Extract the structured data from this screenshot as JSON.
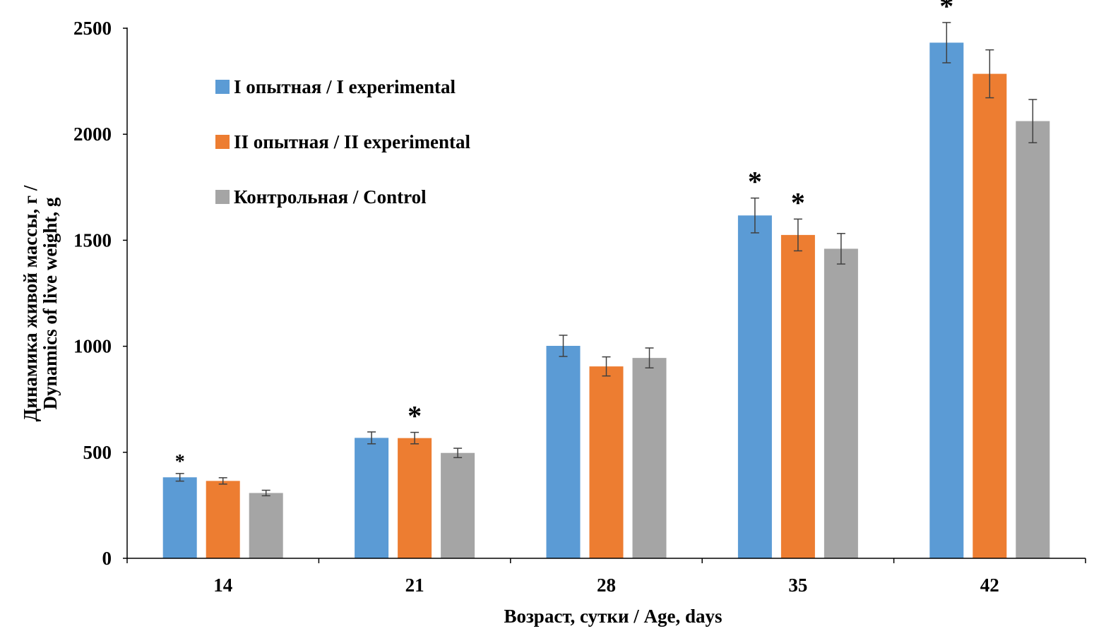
{
  "chart_data": {
    "type": "bar",
    "categories": [
      "14",
      "21",
      "28",
      "35",
      "42"
    ],
    "series": [
      {
        "name": "I опытная / I experimental",
        "color": "#5b9bd5",
        "values": [
          382,
          568,
          1002,
          1617,
          2432
        ],
        "errors": [
          18,
          28,
          50,
          82,
          95
        ],
        "markers": [
          "*",
          "",
          "",
          "*",
          "*"
        ]
      },
      {
        "name": "II опытная / II experimental",
        "color": "#ed7d31",
        "values": [
          365,
          567,
          905,
          1525,
          2285
        ],
        "errors": [
          15,
          27,
          45,
          75,
          113
        ],
        "markers": [
          "",
          "*",
          "",
          "*",
          ""
        ]
      },
      {
        "name": "Контрольная / Control",
        "color": "#a5a5a5",
        "values": [
          308,
          497,
          945,
          1460,
          2062
        ],
        "errors": [
          13,
          22,
          47,
          72,
          102
        ],
        "markers": [
          "",
          "",
          "",
          "",
          ""
        ]
      }
    ],
    "xlabel": "Возраст, сутки / Age, days",
    "ylabel": [
      "Динамика  живой массы, г /",
      "Dynamics of live weight, g"
    ],
    "ylim": [
      0,
      2500
    ],
    "yticks": [
      0,
      500,
      1000,
      1500,
      2000,
      2500
    ],
    "grid": false,
    "legend": "top-left"
  }
}
